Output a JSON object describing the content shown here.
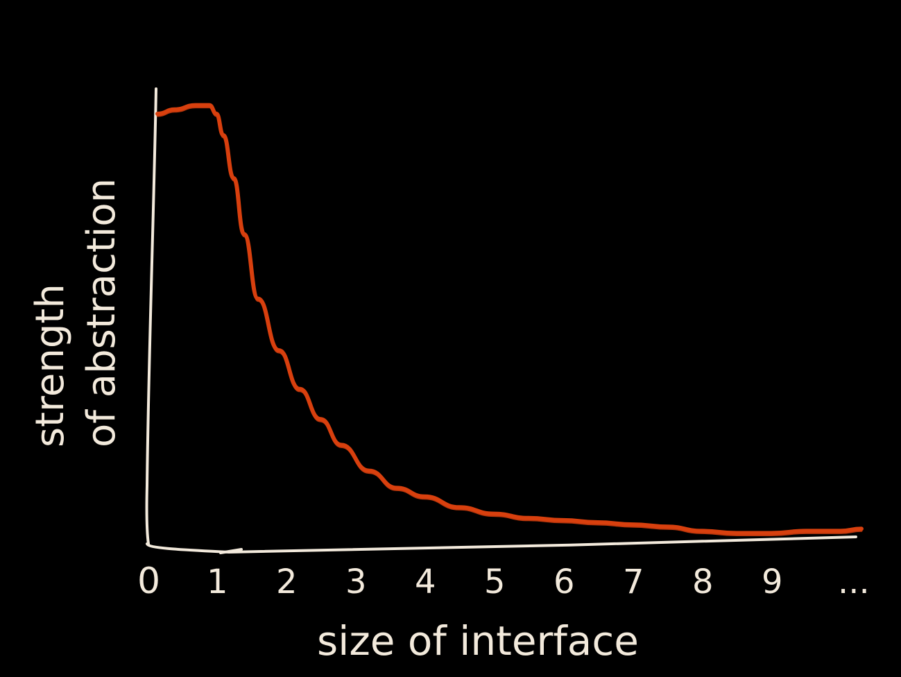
{
  "colors": {
    "background": "#000000",
    "axis": "#f3eadc",
    "curve": "#d8400e"
  },
  "chart_data": {
    "type": "line",
    "title": "",
    "xlabel": "size of interface",
    "ylabel_lines": [
      "strength",
      "of abstraction"
    ],
    "tick_labels": [
      "0",
      "1",
      "2",
      "3",
      "4",
      "5",
      "6",
      "7",
      "8",
      "9",
      "..."
    ],
    "xlim": [
      0,
      10.4
    ],
    "ylim": [
      0,
      1.2
    ],
    "grid": false,
    "legend": "none",
    "series": [
      {
        "x": [
          0.15,
          0.4,
          0.7,
          0.9,
          1.0,
          1.1,
          1.25,
          1.4,
          1.6,
          1.9,
          2.2,
          2.5,
          2.8,
          3.2,
          3.6,
          4.0,
          4.5,
          5.0,
          5.5,
          6.0,
          6.5,
          7.0,
          7.5,
          8.0,
          8.5,
          9.0,
          9.5,
          10.0,
          10.3
        ],
        "y": [
          1.0,
          1.01,
          1.02,
          1.02,
          1.0,
          0.95,
          0.85,
          0.72,
          0.57,
          0.45,
          0.36,
          0.29,
          0.23,
          0.17,
          0.13,
          0.11,
          0.085,
          0.07,
          0.06,
          0.055,
          0.05,
          0.045,
          0.04,
          0.03,
          0.025,
          0.025,
          0.03,
          0.03,
          0.035
        ]
      }
    ]
  }
}
